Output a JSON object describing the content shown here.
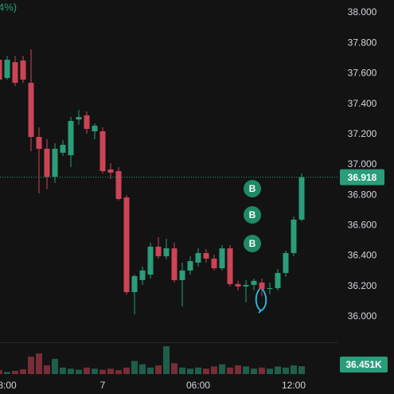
{
  "chart_data": {
    "type": "candlestick",
    "header_fragment": "4%)",
    "up_color": "#2a9d7a",
    "down_color": "#cc4456",
    "xlim": [
      0.1,
      42.6
    ],
    "xticks": [
      {
        "value": 1,
        "label": "8:00"
      },
      {
        "value": 13,
        "label": "7"
      },
      {
        "value": 25,
        "label": "06:00"
      },
      {
        "value": 37,
        "label": "12:00"
      }
    ],
    "ylim": [
      35.832,
      38.084
    ],
    "yticks": [
      {
        "value": 36.0,
        "label": "36.000"
      },
      {
        "value": 36.2,
        "label": "36.200"
      },
      {
        "value": 36.4,
        "label": "36.400"
      },
      {
        "value": 36.6,
        "label": "36.600"
      },
      {
        "value": 36.8,
        "label": "36.800"
      },
      {
        "value": 37.0,
        "label": "37.000"
      },
      {
        "value": 37.2,
        "label": "37.200"
      },
      {
        "value": 37.4,
        "label": "37.400"
      },
      {
        "value": 37.6,
        "label": "37.600"
      },
      {
        "value": 37.8,
        "label": "37.800"
      },
      {
        "value": 38.0,
        "label": "38.000"
      }
    ],
    "series": [
      {
        "open": [
          37.691,
          37.571,
          37.675,
          37.686,
          37.539,
          37.183,
          37.105,
          36.921,
          37.079,
          37.063,
          37.298,
          37.325,
          37.22,
          37.22,
          36.969,
          36.958,
          36.785,
          36.162,
          36.241,
          36.277,
          36.461,
          36.398,
          36.45,
          36.241,
          36.304,
          36.356,
          36.419,
          36.382,
          36.319,
          36.45,
          36.215,
          36.199,
          36.209,
          36.225,
          36.183,
          36.188,
          36.288,
          36.419,
          36.639
        ],
        "high": [
          37.717,
          37.717,
          37.717,
          37.717,
          37.759,
          37.246,
          37.168,
          37.141,
          37.162,
          37.314,
          37.361,
          37.351,
          37.272,
          37.246,
          37.01,
          36.984,
          36.801,
          36.277,
          36.33,
          36.487,
          36.524,
          36.513,
          36.487,
          36.356,
          36.398,
          36.45,
          36.445,
          36.408,
          36.471,
          36.471,
          36.236,
          36.241,
          36.251,
          36.251,
          36.225,
          36.314,
          36.435,
          36.66,
          36.942
        ],
        "low": [
          37.403,
          37.56,
          37.518,
          37.539,
          37.089,
          36.812,
          36.838,
          36.88,
          37.058,
          36.984,
          37.262,
          37.204,
          37.168,
          36.942,
          36.906,
          36.764,
          36.147,
          36.016,
          36.209,
          36.251,
          36.382,
          36.377,
          36.225,
          36.068,
          36.277,
          36.33,
          36.356,
          36.304,
          36.304,
          36.199,
          36.173,
          36.094,
          36.173,
          36.136,
          36.147,
          36.173,
          36.262,
          36.398,
          36.628
        ],
        "close": [
          37.56,
          37.691,
          37.539,
          37.56,
          37.183,
          37.105,
          36.921,
          37.105,
          37.131,
          37.288,
          37.314,
          37.236,
          37.257,
          36.958,
          36.948,
          36.775,
          36.162,
          36.267,
          36.304,
          36.461,
          36.398,
          36.45,
          36.241,
          36.304,
          36.366,
          36.419,
          36.382,
          36.319,
          36.45,
          36.215,
          36.199,
          36.209,
          36.236,
          36.183,
          36.188,
          36.288,
          36.419,
          36.639,
          36.918
        ]
      }
    ],
    "last_price": 36.918,
    "volume": {
      "ylim": [
        0,
        150
      ],
      "values": [
        18,
        10,
        15,
        22,
        80,
        95,
        40,
        70,
        30,
        25,
        20,
        30,
        25,
        20,
        25,
        18,
        30,
        60,
        45,
        30,
        40,
        128,
        50,
        30,
        25,
        30,
        25,
        35,
        45,
        30,
        40,
        35,
        25,
        30,
        25,
        35,
        30,
        40,
        36.451
      ],
      "last_label": "36.451K"
    },
    "signals": [
      "B",
      "B",
      "B"
    ]
  }
}
